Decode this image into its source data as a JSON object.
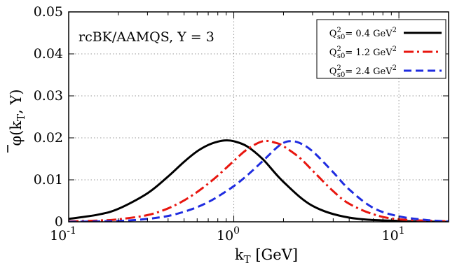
{
  "chart_data": {
    "type": "line",
    "annotation": "rcBK/AAMQS, Y = 3",
    "xlabel": {
      "main": "k",
      "sub": "T",
      "rest": " [GeV]"
    },
    "ylabel": {
      "main": "φ(k",
      "sub": "T",
      "rest": ", Y)"
    },
    "x_scale": "log",
    "xlim": [
      0.1,
      20
    ],
    "ylim": [
      0,
      0.05
    ],
    "x_ticks": [
      {
        "value": 0.1,
        "base": "10",
        "exp": "-1"
      },
      {
        "value": 1,
        "base": "10",
        "exp": "0"
      },
      {
        "value": 10,
        "base": "10",
        "exp": "1"
      }
    ],
    "y_ticks": [
      {
        "value": 0,
        "label": "0"
      },
      {
        "value": 0.01,
        "label": "0.01"
      },
      {
        "value": 0.02,
        "label": "0.02"
      },
      {
        "value": 0.03,
        "label": "0.03"
      },
      {
        "value": 0.04,
        "label": "0.04"
      },
      {
        "value": 0.05,
        "label": "0.05"
      }
    ],
    "grid": true,
    "legend_position": "top-right",
    "series": [
      {
        "legend_pre": "Q",
        "legend_sup": "2",
        "legend_sub": "s0",
        "legend_post": "= 0.4 GeV",
        "legend_unit_sup": "2",
        "color": "#000000",
        "dash": "solid",
        "x": [
          0.1,
          0.15,
          0.2,
          0.3,
          0.4,
          0.5,
          0.6,
          0.7,
          0.8,
          0.9,
          1.0,
          1.2,
          1.5,
          2.0,
          3.0,
          5.0,
          10.0,
          20.0
        ],
        "y": [
          0.0007,
          0.0017,
          0.0031,
          0.0068,
          0.0108,
          0.0143,
          0.0168,
          0.0183,
          0.0191,
          0.0194,
          0.0192,
          0.018,
          0.0149,
          0.0095,
          0.0038,
          0.001,
          0.0002,
          0.0
        ]
      },
      {
        "legend_pre": "Q",
        "legend_sup": "2",
        "legend_sub": "s0",
        "legend_post": "= 1.2 GeV",
        "legend_unit_sup": "2",
        "color": "#e8160f",
        "dash": "dashdot",
        "x": [
          0.1,
          0.15,
          0.2,
          0.3,
          0.4,
          0.5,
          0.6,
          0.7,
          0.8,
          1.0,
          1.2,
          1.5,
          1.8,
          2.0,
          2.5,
          3.0,
          4.0,
          5.0,
          7.0,
          10.0,
          20.0
        ],
        "y": [
          0.0001,
          0.0003,
          0.0006,
          0.0016,
          0.0032,
          0.0051,
          0.0071,
          0.0091,
          0.011,
          0.0145,
          0.0172,
          0.0192,
          0.0188,
          0.018,
          0.0153,
          0.0122,
          0.0073,
          0.0043,
          0.0018,
          0.0006,
          0.0001
        ]
      },
      {
        "legend_pre": "Q",
        "legend_sup": "2",
        "legend_sub": "s0",
        "legend_post": "= 2.4 GeV",
        "legend_unit_sup": "2",
        "color": "#1f2ce0",
        "dash": "dashed",
        "x": [
          0.1,
          0.2,
          0.3,
          0.4,
          0.5,
          0.6,
          0.7,
          0.8,
          1.0,
          1.2,
          1.5,
          1.8,
          2.0,
          2.2,
          2.5,
          3.0,
          4.0,
          5.0,
          7.0,
          10.0,
          15.0,
          20.0
        ],
        "y": [
          0.0,
          0.0002,
          0.0007,
          0.0014,
          0.0024,
          0.0035,
          0.0047,
          0.006,
          0.0085,
          0.011,
          0.0145,
          0.0175,
          0.0188,
          0.0192,
          0.0188,
          0.0168,
          0.0118,
          0.0077,
          0.0033,
          0.0013,
          0.0004,
          0.0001
        ]
      }
    ]
  }
}
